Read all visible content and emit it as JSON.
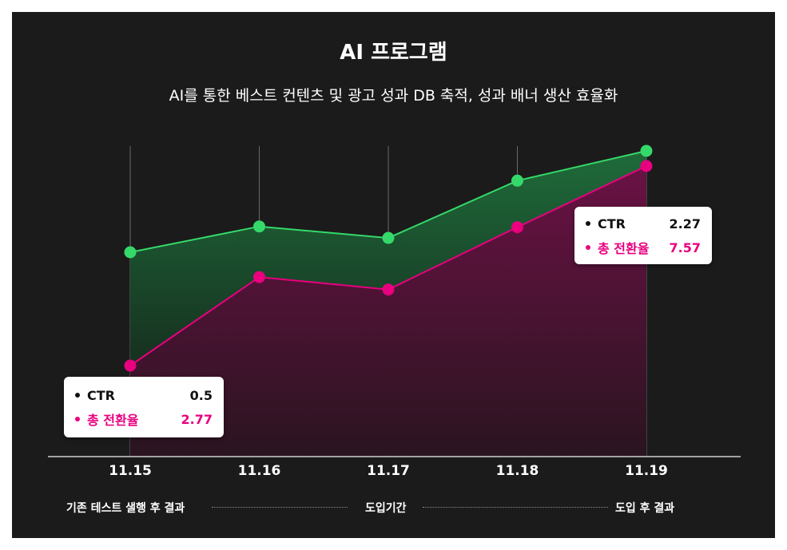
{
  "header": {
    "title": "AI 프로그램",
    "subtitle": "AI를 통한 베스트 컨텐츠 및 광고 성과 DB 축적, 성과 배너 생산 효율화"
  },
  "chart_data": {
    "type": "area",
    "categories": [
      "11.15",
      "11.16",
      "11.17",
      "11.18",
      "11.19"
    ],
    "series": [
      {
        "name": "CTR",
        "values": [
          0.5,
          0.95,
          0.75,
          1.75,
          2.27
        ],
        "color": "#35d96a"
      },
      {
        "name": "총 전환율",
        "values": [
          2.77,
          4.9,
          4.6,
          6.1,
          7.57
        ],
        "color": "#e8007f"
      }
    ],
    "grid": "vertical",
    "legend": "none"
  },
  "tooltips": [
    {
      "ctr_label": "CTR",
      "ctr_value": "0.5",
      "conv_label": "총 전환율",
      "conv_value": "2.77"
    },
    {
      "ctr_label": "CTR",
      "ctr_value": "2.27",
      "conv_label": "총 전환율",
      "conv_value": "7.57"
    }
  ],
  "phases": {
    "before": "기존 테스트 샐행 후 결과",
    "during": "도입기간",
    "after": "도입 후 결과"
  },
  "colors": {
    "background": "#1b1b1b",
    "ctr": "#35d96a",
    "conversion": "#e8007f"
  }
}
